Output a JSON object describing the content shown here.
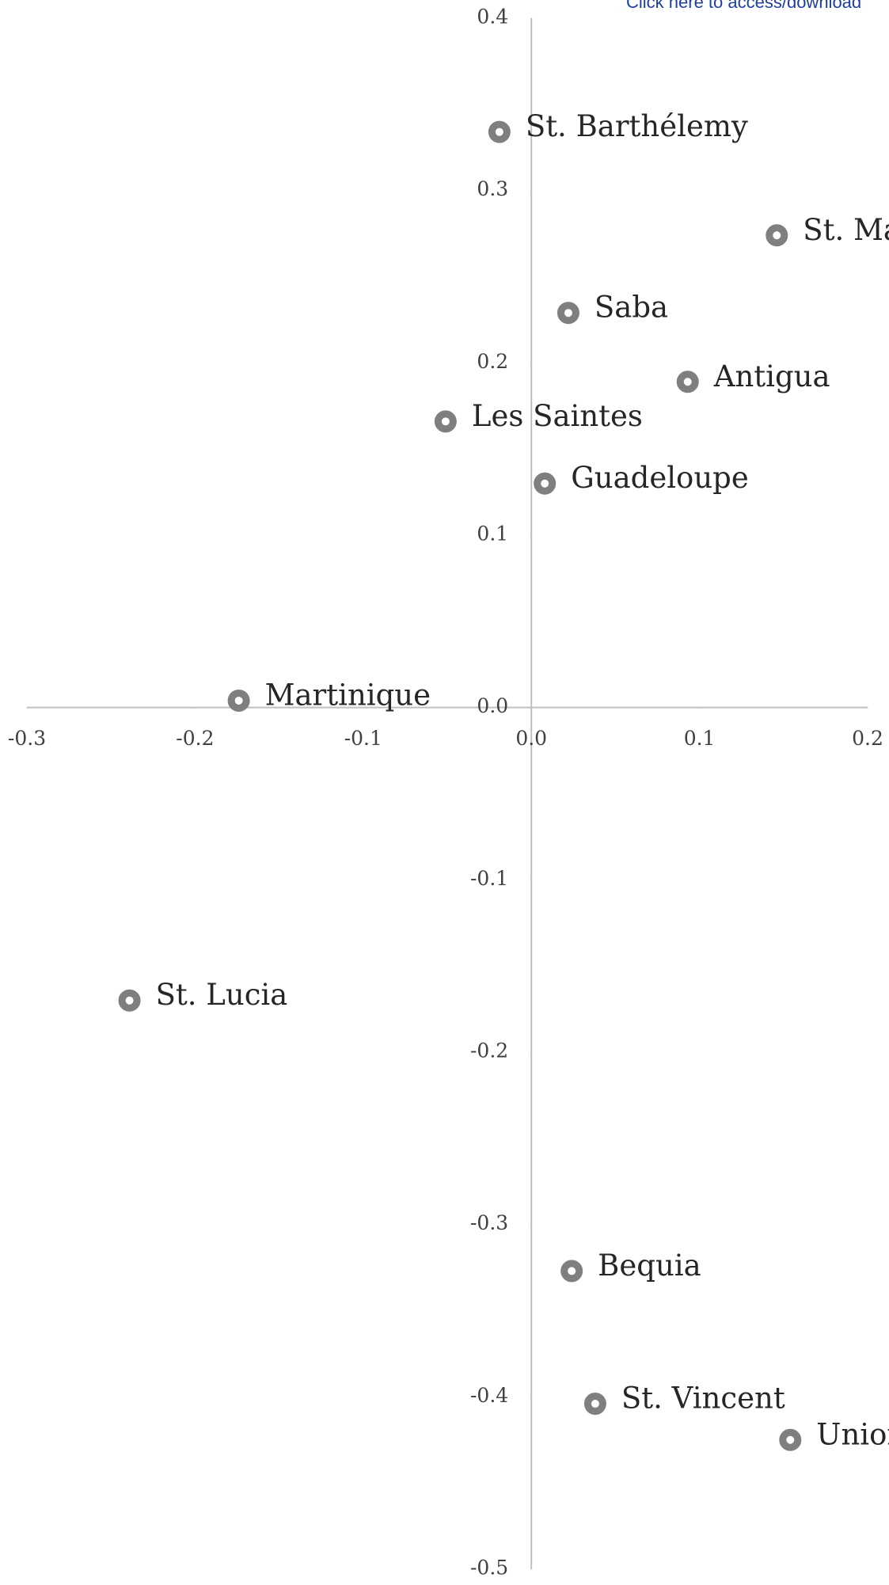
{
  "header": {
    "link_text": "Click here to access/download"
  },
  "chart_data": {
    "type": "scatter",
    "series": [
      {
        "color": "#7f7f7f",
        "names": [
          "St. Barthélemy",
          "St. Martin",
          "Saba",
          "Antigua",
          "Les Saintes",
          "Guadeloupe",
          "Martinique",
          "St. Lucia",
          "Bequia",
          "St. Vincent",
          "Union Island"
        ],
        "x": [
          -0.019,
          0.146,
          0.022,
          0.093,
          -0.051,
          0.008,
          -0.174,
          -0.239,
          0.024,
          0.038,
          0.154
        ],
        "values": [
          0.334,
          0.274,
          0.229,
          0.189,
          0.166,
          0.13,
          0.004,
          -0.17,
          -0.327,
          -0.404,
          -0.425
        ]
      }
    ],
    "xlim": [
      -0.3,
      0.2
    ],
    "xticks": [
      -0.3,
      -0.2,
      -0.1,
      {
        "value": 0,
        "label": "0.0"
      },
      0.1,
      0.2
    ],
    "ylim": [
      -0.5,
      0.4
    ],
    "yticks": [
      0.4,
      0.3,
      0.2,
      0.1,
      {
        "value": 0,
        "label": "0.0"
      },
      -0.1,
      -0.2,
      -0.3,
      -0.4,
      -0.5
    ],
    "axis_color": "#bfbfbf"
  }
}
